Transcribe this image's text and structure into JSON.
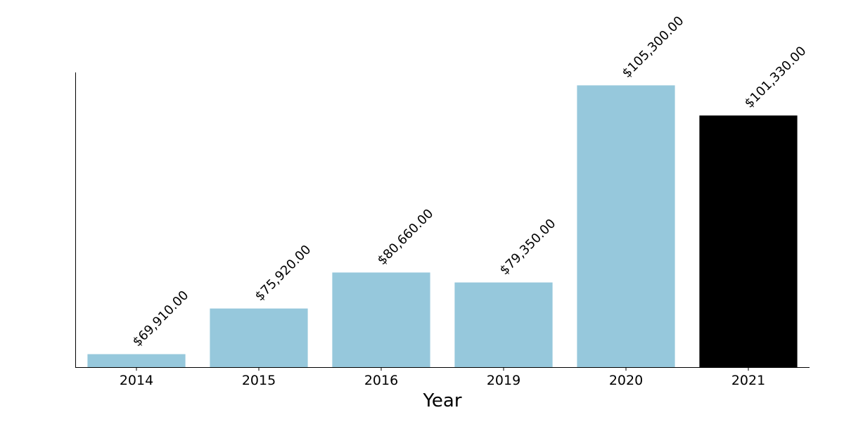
{
  "chart_data": {
    "type": "bar",
    "x_label": "Year",
    "categories": [
      "2014",
      "2015",
      "2016",
      "2019",
      "2020",
      "2021"
    ],
    "values": [
      69910,
      75920,
      80660,
      79350,
      105300,
      101330
    ],
    "value_labels": [
      "$69,910.00",
      "$75,920.00",
      "$80,660.00",
      "$79,350.00",
      "$105,300.00",
      "$101,330.00"
    ],
    "colors": [
      "#96c8dc",
      "#96c8dc",
      "#96c8dc",
      "#96c8dc",
      "#96c8dc",
      "#000000"
    ],
    "ylim": [
      68200,
      107000
    ]
  }
}
